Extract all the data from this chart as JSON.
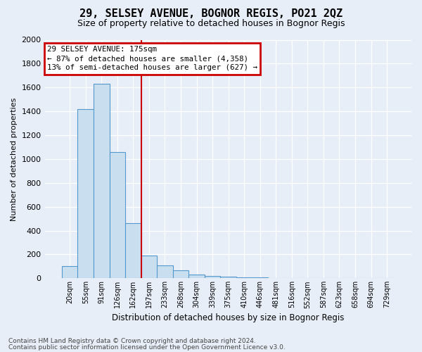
{
  "title": "29, SELSEY AVENUE, BOGNOR REGIS, PO21 2QZ",
  "subtitle": "Size of property relative to detached houses in Bognor Regis",
  "xlabel": "Distribution of detached houses by size in Bognor Regis",
  "ylabel": "Number of detached properties",
  "categories": [
    "20sqm",
    "55sqm",
    "91sqm",
    "126sqm",
    "162sqm",
    "197sqm",
    "233sqm",
    "268sqm",
    "304sqm",
    "339sqm",
    "375sqm",
    "410sqm",
    "446sqm",
    "481sqm",
    "516sqm",
    "552sqm",
    "587sqm",
    "623sqm",
    "658sqm",
    "694sqm",
    "729sqm"
  ],
  "values": [
    100,
    1420,
    1630,
    1060,
    460,
    190,
    110,
    65,
    30,
    18,
    12,
    8,
    5,
    4,
    3,
    2,
    2,
    1,
    1,
    1,
    0
  ],
  "bar_color": "#c9dff0",
  "bar_edge_color": "#5599cc",
  "highlight_line_index": 4,
  "highlight_line_color": "#cc0000",
  "annotation_line1": "29 SELSEY AVENUE: 175sqm",
  "annotation_line2": "← 87% of detached houses are smaller (4,358)",
  "annotation_line3": "13% of semi-detached houses are larger (627) →",
  "annotation_box_edgecolor": "#cc0000",
  "ylim": [
    0,
    2000
  ],
  "yticks": [
    0,
    200,
    400,
    600,
    800,
    1000,
    1200,
    1400,
    1600,
    1800,
    2000
  ],
  "footnote1": "Contains HM Land Registry data © Crown copyright and database right 2024.",
  "footnote2": "Contains public sector information licensed under the Open Government Licence v3.0.",
  "background_color": "#e8eef8",
  "grid_color": "#ffffff"
}
